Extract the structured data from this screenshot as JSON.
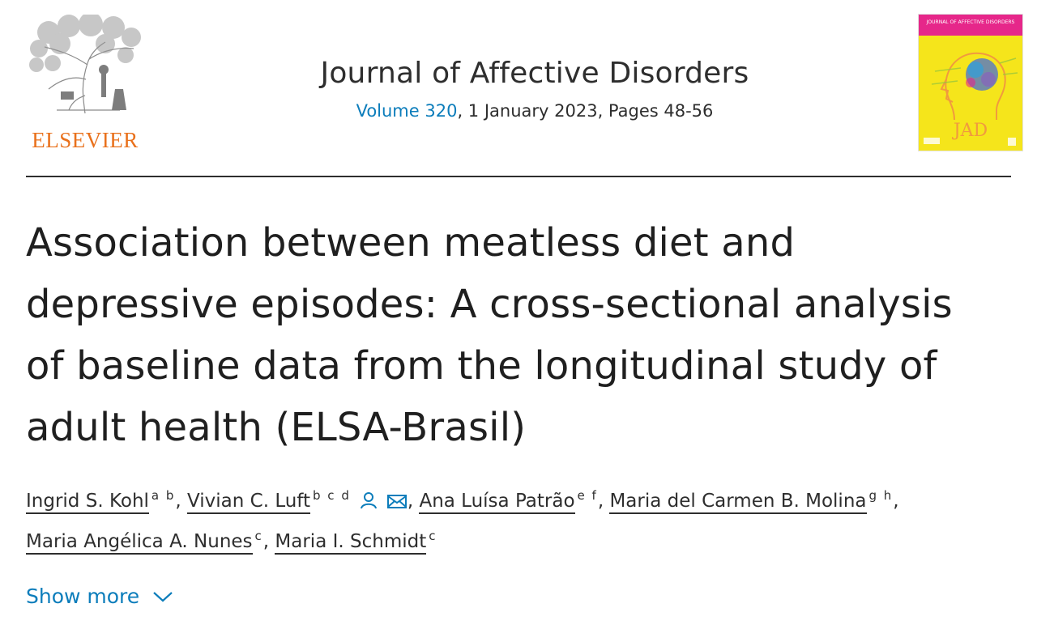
{
  "publisher": {
    "name": "ELSEVIER",
    "color": "#e9711c",
    "logo_icon": "elsevier-tree-icon"
  },
  "journal": {
    "title": "Journal of Affective Disorders",
    "volume": "Volume 320",
    "issue_rest": ", 1 January 2023, Pages 48-56",
    "cover": {
      "header_text": "JOURNAL OF AFFECTIVE DISORDERS",
      "letters": "JAD",
      "background": "#f5e51b",
      "band_color": "#e6278a"
    }
  },
  "article": {
    "title_lines": [
      "Association between meatless diet and",
      "depressive episodes: A cross-sectional analysis",
      "of baseline data from the longitudinal study of",
      "adult health (ELSA-Brasil)"
    ]
  },
  "authors": [
    {
      "name": "Ingrid S. Kohl",
      "affiliations": "a b"
    },
    {
      "name": "Vivian C. Luft",
      "affiliations": "b c d",
      "icons": [
        "person-icon",
        "envelope-icon"
      ]
    },
    {
      "name": "Ana Luísa Patrão",
      "affiliations": "e f"
    },
    {
      "name": "Maria del Carmen B. Molina",
      "affiliations": "g h"
    },
    {
      "name": "Maria Angélica A. Nunes",
      "affiliations": "c"
    },
    {
      "name": "Maria I. Schmidt",
      "affiliations": "c"
    }
  ],
  "show_more": {
    "label": "Show more",
    "icon": "chevron-down-icon"
  },
  "colors": {
    "link": "#0c7dbb",
    "text": "#2e2e2e"
  }
}
